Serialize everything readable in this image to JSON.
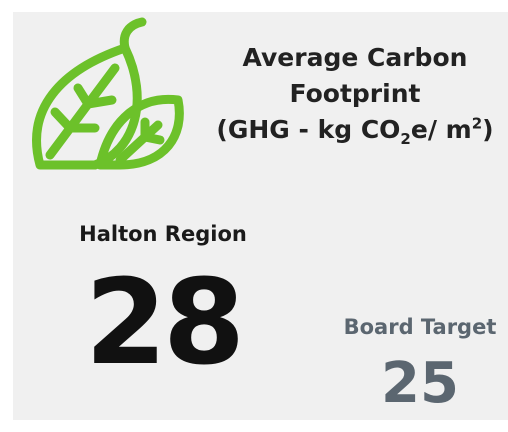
{
  "card": {
    "title": "Average Carbon Footprint",
    "unit_parts": [
      "(GHG - kg CO",
      "2",
      "e/ m",
      "2",
      ")"
    ],
    "region": {
      "label": "Halton Region",
      "value": 28
    },
    "target": {
      "label": "Board Target",
      "value": 25
    }
  }
}
